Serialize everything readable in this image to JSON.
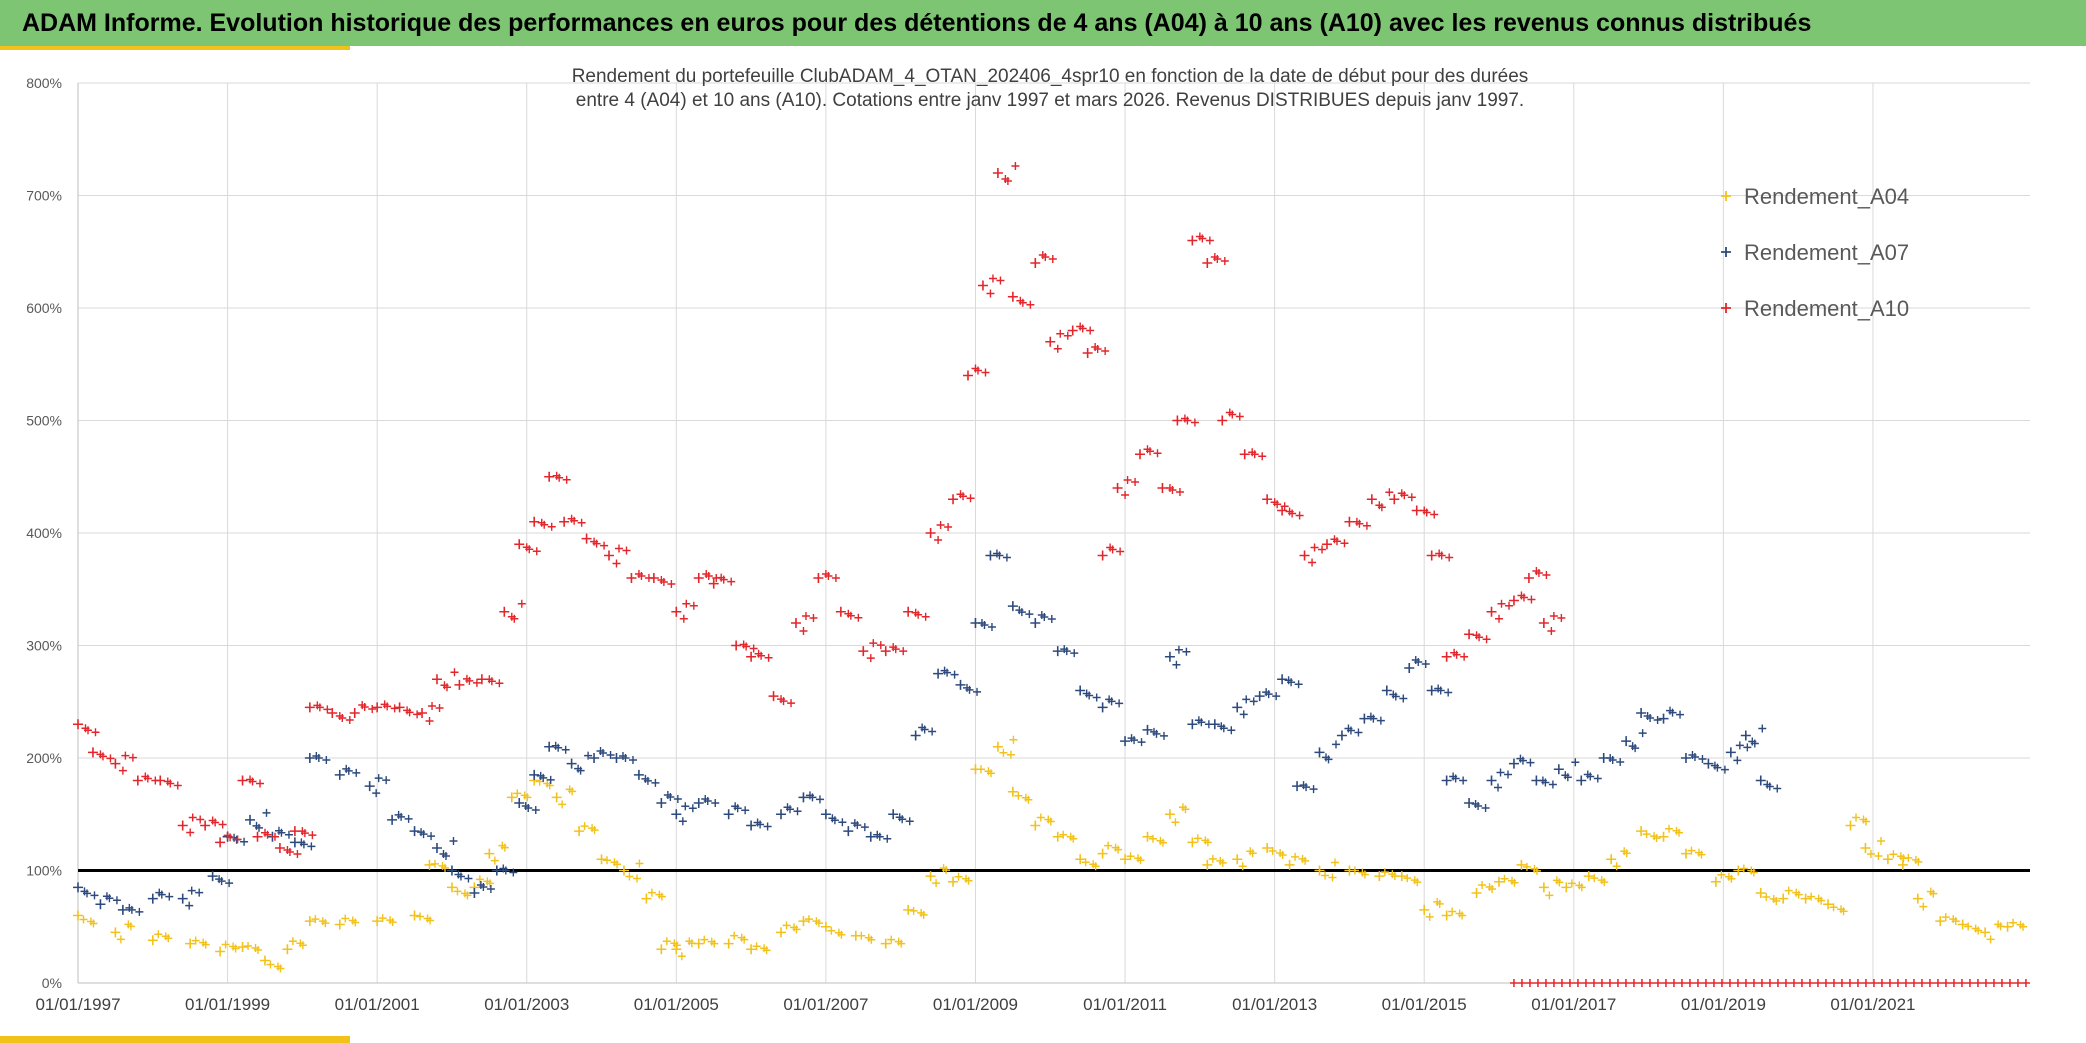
{
  "header": {
    "title": "ADAM Informe. Evolution historique des performances en euros pour des détentions de 4 ans (A04) à 10 ans (A10) avec les revenus connus distribués"
  },
  "colors": {
    "banner": "#7dc573",
    "accent": "#f2c21b",
    "a04": "#f2c21b",
    "a07": "#2e4a7d",
    "a10": "#e3262b",
    "reference_line": "#000000"
  },
  "chart_data": {
    "type": "scatter",
    "title": [
      "Rendement du portefeuille ClubADAM_4_OTAN_202406_4spr10  en fonction de la date de début pour des durées",
      "entre 4 (A04) et 10 ans (A10). Cotations entre janv 1997 et mars 2026. Revenus DISTRIBUES depuis janv 1997."
    ],
    "x_tick_labels": [
      "01/01/1997",
      "01/01/1999",
      "01/01/2001",
      "01/01/2003",
      "01/01/2005",
      "01/01/2007",
      "01/01/2009",
      "01/01/2011",
      "01/01/2013",
      "01/01/2015",
      "01/01/2017",
      "01/01/2019",
      "01/01/2021"
    ],
    "y_tick_labels": [
      "0%",
      "100%",
      "200%",
      "300%",
      "400%",
      "500%",
      "600%",
      "700%",
      "800%"
    ],
    "ylim": [
      0,
      800
    ],
    "xlim": [
      1997.0,
      2023.1
    ],
    "grid": true,
    "legend_position": "top-right",
    "reference_line": 100,
    "series": [
      {
        "name": "Rendement_A04",
        "color": "#f2c21b",
        "points": [
          [
            1997.0,
            60
          ],
          [
            1997.5,
            45
          ],
          [
            1998.0,
            38
          ],
          [
            1998.5,
            35
          ],
          [
            1998.9,
            28
          ],
          [
            1999.2,
            32
          ],
          [
            1999.5,
            20
          ],
          [
            1999.8,
            30
          ],
          [
            2000.1,
            55
          ],
          [
            2000.5,
            52
          ],
          [
            2001.0,
            55
          ],
          [
            2001.5,
            60
          ],
          [
            2001.7,
            105
          ],
          [
            2002.0,
            85
          ],
          [
            2002.3,
            85
          ],
          [
            2002.5,
            115
          ],
          [
            2002.8,
            165
          ],
          [
            2003.1,
            180
          ],
          [
            2003.4,
            165
          ],
          [
            2003.7,
            135
          ],
          [
            2004.0,
            110
          ],
          [
            2004.3,
            100
          ],
          [
            2004.6,
            75
          ],
          [
            2004.8,
            30
          ],
          [
            2005.0,
            30
          ],
          [
            2005.3,
            35
          ],
          [
            2005.7,
            35
          ],
          [
            2006.0,
            30
          ],
          [
            2006.4,
            45
          ],
          [
            2006.7,
            55
          ],
          [
            2007.0,
            50
          ],
          [
            2007.4,
            42
          ],
          [
            2007.8,
            35
          ],
          [
            2008.1,
            65
          ],
          [
            2008.4,
            95
          ],
          [
            2008.7,
            90
          ],
          [
            2009.0,
            190
          ],
          [
            2009.3,
            210
          ],
          [
            2009.5,
            170
          ],
          [
            2009.8,
            140
          ],
          [
            2010.1,
            130
          ],
          [
            2010.4,
            110
          ],
          [
            2010.7,
            115
          ],
          [
            2011.0,
            110
          ],
          [
            2011.3,
            130
          ],
          [
            2011.6,
            150
          ],
          [
            2011.9,
            125
          ],
          [
            2012.1,
            105
          ],
          [
            2012.5,
            110
          ],
          [
            2012.9,
            120
          ],
          [
            2013.2,
            105
          ],
          [
            2013.6,
            100
          ],
          [
            2014.0,
            100
          ],
          [
            2014.4,
            95
          ],
          [
            2014.7,
            95
          ],
          [
            2015.0,
            65
          ],
          [
            2015.3,
            60
          ],
          [
            2015.7,
            80
          ],
          [
            2016.0,
            90
          ],
          [
            2016.3,
            105
          ],
          [
            2016.6,
            85
          ],
          [
            2016.9,
            85
          ],
          [
            2017.2,
            95
          ],
          [
            2017.5,
            110
          ],
          [
            2017.9,
            135
          ],
          [
            2018.2,
            130
          ],
          [
            2018.5,
            115
          ],
          [
            2018.9,
            90
          ],
          [
            2019.2,
            100
          ],
          [
            2019.5,
            80
          ],
          [
            2019.8,
            75
          ],
          [
            2020.1,
            75
          ],
          [
            2020.4,
            70
          ],
          [
            2020.7,
            140
          ],
          [
            2020.9,
            120
          ],
          [
            2021.2,
            110
          ],
          [
            2021.4,
            105
          ],
          [
            2021.6,
            75
          ],
          [
            2021.9,
            55
          ],
          [
            2022.2,
            52
          ],
          [
            2022.5,
            45
          ],
          [
            2022.8,
            50
          ]
        ]
      },
      {
        "name": "Rendement_A07",
        "color": "#2e4a7d",
        "points": [
          [
            1997.0,
            85
          ],
          [
            1997.3,
            70
          ],
          [
            1997.6,
            65
          ],
          [
            1998.0,
            75
          ],
          [
            1998.4,
            75
          ],
          [
            1998.8,
            95
          ],
          [
            1999.0,
            130
          ],
          [
            1999.3,
            145
          ],
          [
            1999.6,
            130
          ],
          [
            1999.9,
            125
          ],
          [
            2000.1,
            200
          ],
          [
            2000.5,
            185
          ],
          [
            2000.9,
            175
          ],
          [
            2001.2,
            145
          ],
          [
            2001.5,
            135
          ],
          [
            2001.8,
            120
          ],
          [
            2002.0,
            100
          ],
          [
            2002.3,
            80
          ],
          [
            2002.6,
            100
          ],
          [
            2002.9,
            160
          ],
          [
            2003.1,
            185
          ],
          [
            2003.3,
            210
          ],
          [
            2003.6,
            195
          ],
          [
            2003.9,
            200
          ],
          [
            2004.2,
            200
          ],
          [
            2004.5,
            185
          ],
          [
            2004.8,
            160
          ],
          [
            2005.0,
            150
          ],
          [
            2005.3,
            160
          ],
          [
            2005.7,
            150
          ],
          [
            2006.0,
            140
          ],
          [
            2006.4,
            150
          ],
          [
            2006.7,
            165
          ],
          [
            2007.0,
            150
          ],
          [
            2007.3,
            135
          ],
          [
            2007.6,
            130
          ],
          [
            2007.9,
            150
          ],
          [
            2008.2,
            220
          ],
          [
            2008.5,
            275
          ],
          [
            2008.8,
            265
          ],
          [
            2009.0,
            320
          ],
          [
            2009.2,
            380
          ],
          [
            2009.5,
            335
          ],
          [
            2009.8,
            320
          ],
          [
            2010.1,
            295
          ],
          [
            2010.4,
            260
          ],
          [
            2010.7,
            245
          ],
          [
            2011.0,
            215
          ],
          [
            2011.3,
            225
          ],
          [
            2011.6,
            290
          ],
          [
            2011.9,
            230
          ],
          [
            2012.2,
            230
          ],
          [
            2012.5,
            245
          ],
          [
            2012.8,
            255
          ],
          [
            2013.1,
            270
          ],
          [
            2013.3,
            175
          ],
          [
            2013.6,
            205
          ],
          [
            2013.9,
            220
          ],
          [
            2014.2,
            235
          ],
          [
            2014.5,
            260
          ],
          [
            2014.8,
            280
          ],
          [
            2015.1,
            260
          ],
          [
            2015.3,
            180
          ],
          [
            2015.6,
            160
          ],
          [
            2015.9,
            180
          ],
          [
            2016.2,
            195
          ],
          [
            2016.5,
            180
          ],
          [
            2016.8,
            190
          ],
          [
            2017.1,
            180
          ],
          [
            2017.4,
            200
          ],
          [
            2017.7,
            215
          ],
          [
            2017.9,
            240
          ],
          [
            2018.2,
            235
          ],
          [
            2018.5,
            200
          ],
          [
            2018.8,
            195
          ],
          [
            2019.1,
            205
          ],
          [
            2019.3,
            220
          ],
          [
            2019.5,
            180
          ]
        ]
      },
      {
        "name": "Rendement_A10",
        "color": "#e3262b",
        "points": [
          [
            1997.0,
            230
          ],
          [
            1997.2,
            205
          ],
          [
            1997.5,
            195
          ],
          [
            1997.8,
            180
          ],
          [
            1998.1,
            180
          ],
          [
            1998.4,
            140
          ],
          [
            1998.7,
            140
          ],
          [
            1998.9,
            125
          ],
          [
            1999.2,
            180
          ],
          [
            1999.4,
            130
          ],
          [
            1999.7,
            120
          ],
          [
            1999.9,
            135
          ],
          [
            2000.1,
            245
          ],
          [
            2000.4,
            240
          ],
          [
            2000.7,
            240
          ],
          [
            2001.0,
            245
          ],
          [
            2001.3,
            245
          ],
          [
            2001.6,
            240
          ],
          [
            2001.8,
            270
          ],
          [
            2002.1,
            265
          ],
          [
            2002.4,
            270
          ],
          [
            2002.7,
            330
          ],
          [
            2002.9,
            390
          ],
          [
            2003.1,
            410
          ],
          [
            2003.3,
            450
          ],
          [
            2003.5,
            410
          ],
          [
            2003.8,
            395
          ],
          [
            2004.1,
            380
          ],
          [
            2004.4,
            360
          ],
          [
            2004.7,
            360
          ],
          [
            2005.0,
            330
          ],
          [
            2005.3,
            360
          ],
          [
            2005.5,
            355
          ],
          [
            2005.8,
            300
          ],
          [
            2006.0,
            290
          ],
          [
            2006.3,
            255
          ],
          [
            2006.6,
            320
          ],
          [
            2006.9,
            360
          ],
          [
            2007.2,
            330
          ],
          [
            2007.5,
            295
          ],
          [
            2007.8,
            295
          ],
          [
            2008.1,
            330
          ],
          [
            2008.4,
            400
          ],
          [
            2008.7,
            430
          ],
          [
            2008.9,
            540
          ],
          [
            2009.1,
            620
          ],
          [
            2009.3,
            720
          ],
          [
            2009.5,
            610
          ],
          [
            2009.8,
            640
          ],
          [
            2010.0,
            570
          ],
          [
            2010.3,
            580
          ],
          [
            2010.5,
            560
          ],
          [
            2010.7,
            380
          ],
          [
            2010.9,
            440
          ],
          [
            2011.2,
            470
          ],
          [
            2011.5,
            440
          ],
          [
            2011.7,
            500
          ],
          [
            2011.9,
            660
          ],
          [
            2012.1,
            640
          ],
          [
            2012.3,
            500
          ],
          [
            2012.6,
            470
          ],
          [
            2012.9,
            430
          ],
          [
            2013.1,
            420
          ],
          [
            2013.4,
            380
          ],
          [
            2013.7,
            390
          ],
          [
            2014.0,
            410
          ],
          [
            2014.3,
            430
          ],
          [
            2014.6,
            430
          ],
          [
            2014.9,
            420
          ],
          [
            2015.1,
            380
          ],
          [
            2015.3,
            290
          ],
          [
            2015.6,
            310
          ],
          [
            2015.9,
            330
          ],
          [
            2016.2,
            340
          ],
          [
            2016.4,
            360
          ],
          [
            2016.6,
            320
          ]
        ]
      }
    ]
  }
}
